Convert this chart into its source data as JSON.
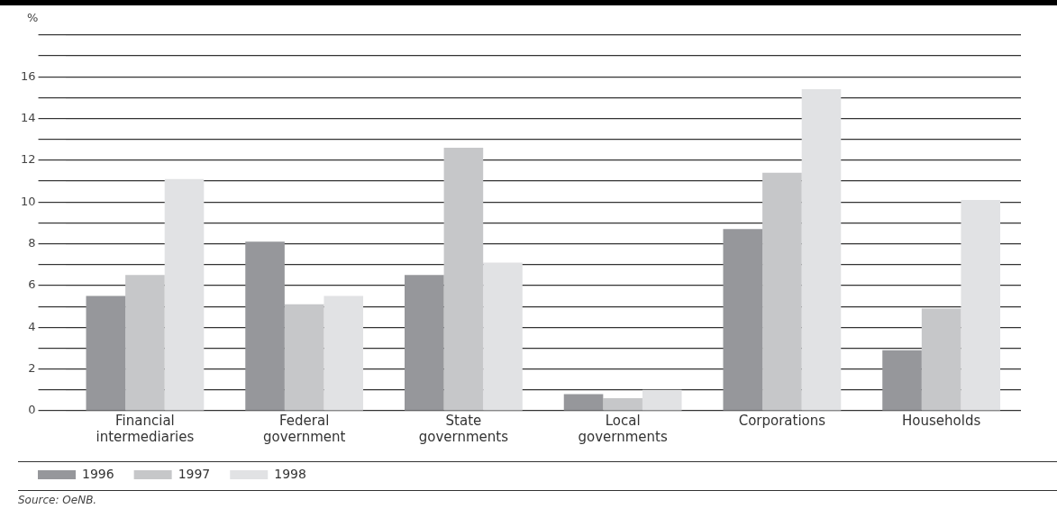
{
  "chart_data": {
    "type": "bar",
    "ylabel": "%",
    "categories": [
      "Financial intermediaries",
      "Federal government",
      "State governments",
      "Local governments",
      "Corporations",
      "Households"
    ],
    "series": [
      {
        "name": "1996",
        "color": "#96979b",
        "values": [
          5.5,
          8.1,
          6.5,
          0.8,
          8.7,
          2.9
        ]
      },
      {
        "name": "1997",
        "color": "#c6c7c9",
        "values": [
          6.5,
          5.1,
          12.6,
          0.6,
          11.4,
          4.9
        ]
      },
      {
        "name": "1998",
        "color": "#e1e2e4",
        "values": [
          11.1,
          5.5,
          7.1,
          1.0,
          15.4,
          10.1
        ]
      }
    ],
    "ylim": [
      0,
      18
    ],
    "yticks": [
      0,
      {
        "value": 1,
        "label": null
      },
      2,
      {
        "value": 3,
        "label": null
      },
      4,
      {
        "value": 5,
        "label": null
      },
      6,
      {
        "value": 7,
        "label": null
      },
      8,
      {
        "value": 9,
        "label": null
      },
      10,
      {
        "value": 11,
        "label": null
      },
      12,
      {
        "value": 13,
        "label": null
      },
      14,
      {
        "value": 15,
        "label": null
      },
      16,
      {
        "value": 17,
        "label": null
      },
      {
        "value": 18,
        "label": null
      }
    ],
    "grid": "y",
    "legend": "bottom",
    "annotations": [
      "Source: OeNB."
    ]
  }
}
